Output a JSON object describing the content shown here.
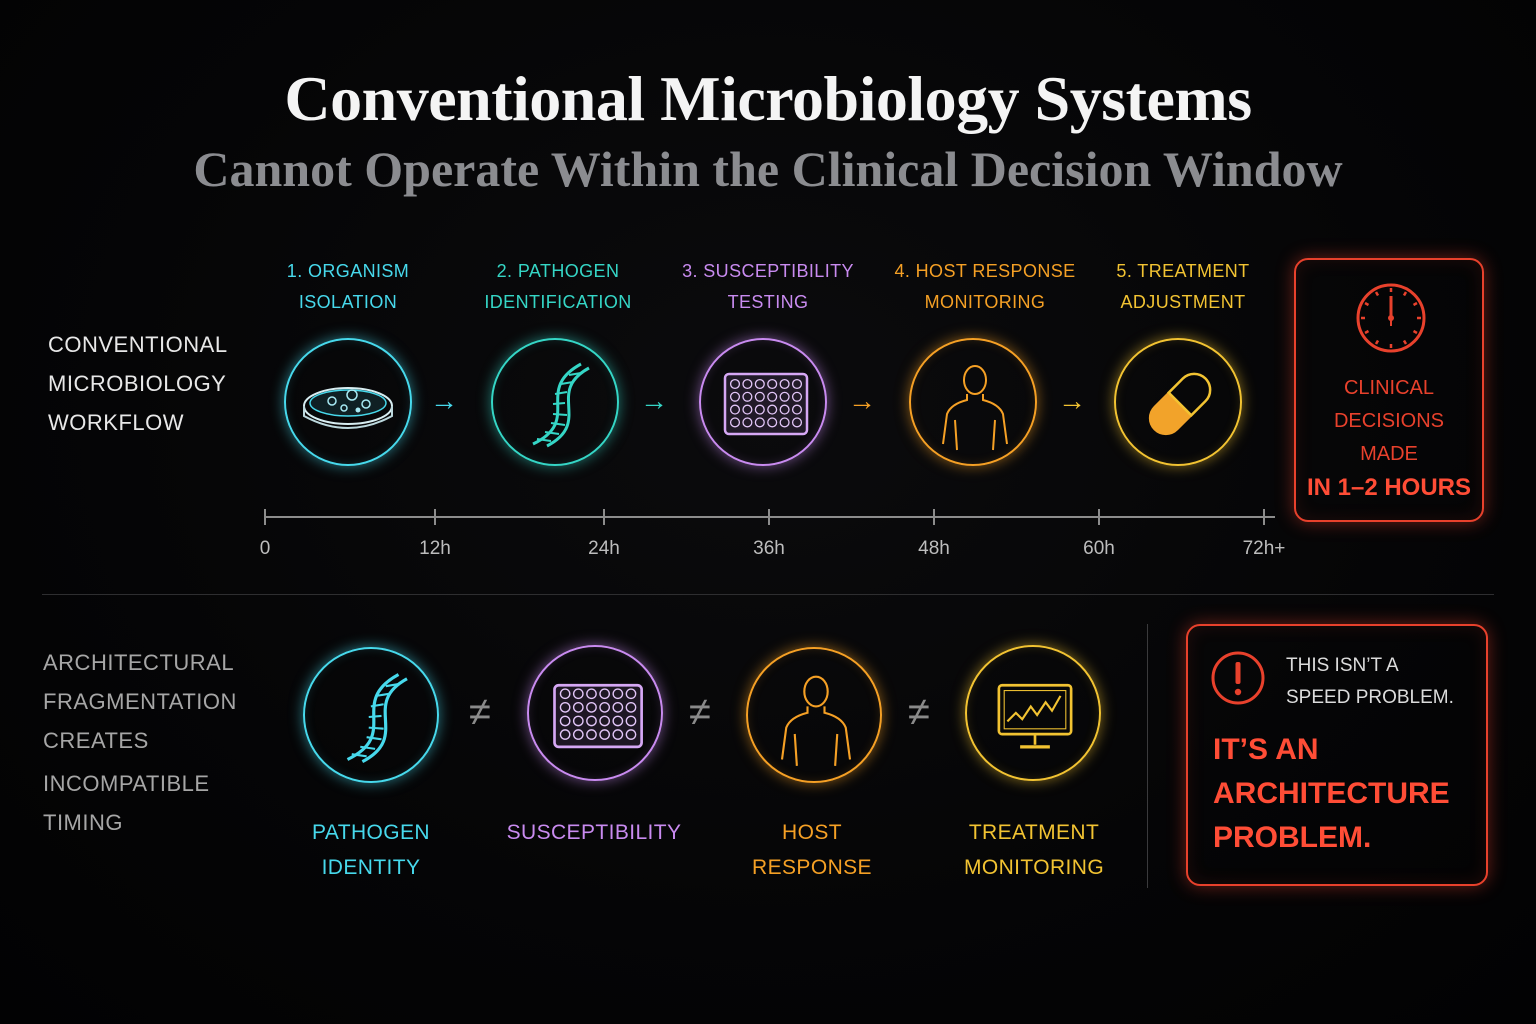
{
  "title": "Conventional Microbiology Systems",
  "subtitle": "Cannot Operate Within the Clinical Decision Window",
  "workflow": {
    "side_label": [
      "CONVENTIONAL",
      "MICROBIOLOGY",
      "WORKFLOW"
    ],
    "steps": [
      {
        "line1": "1. ORGANISM",
        "line2": "ISOLATION",
        "icon": "petri-dish-icon",
        "color": "#47d9ec"
      },
      {
        "line1": "2. PATHOGEN",
        "line2": "IDENTIFICATION",
        "icon": "dna-icon",
        "color": "#35d6c6"
      },
      {
        "line1": "3. SUSCEPTIBILITY",
        "line2": "TESTING",
        "icon": "well-plate-icon",
        "color": "#c98bf0"
      },
      {
        "line1": "4. HOST RESPONSE",
        "line2": "MONITORING",
        "icon": "human-torso-icon",
        "color": "#f5a025"
      },
      {
        "line1": "5. TREATMENT",
        "line2": "ADJUSTMENT",
        "icon": "capsule-icon",
        "color": "#f2c332"
      }
    ],
    "arrow": "→",
    "timeline_ticks": [
      "0",
      "12h",
      "24h",
      "36h",
      "48h",
      "60h",
      "72h+"
    ]
  },
  "clinical_box": {
    "icon": "clock-icon",
    "lines": [
      "CLINICAL",
      "DECISIONS",
      "MADE"
    ],
    "emphasis": "IN 1–2 HOURS",
    "color": "#e8412c"
  },
  "fragmentation": {
    "side_label": [
      "ARCHITECTURAL",
      "FRAGMENTATION",
      "CREATES",
      "INCOMPATIBLE",
      "TIMING"
    ],
    "items": [
      {
        "line1": "PATHOGEN",
        "line2": "IDENTITY",
        "icon": "dna-icon",
        "color": "#47d9ec"
      },
      {
        "line1": "SUSCEPTIBILITY",
        "line2": "",
        "icon": "well-plate-icon",
        "color": "#c98bf0"
      },
      {
        "line1": "HOST",
        "line2": "RESPONSE",
        "icon": "human-torso-icon",
        "color": "#f5a025"
      },
      {
        "line1": "TREATMENT",
        "line2": "MONITORING",
        "icon": "monitor-chart-icon",
        "color": "#f2c332"
      }
    ],
    "neq": "≠"
  },
  "problem_box": {
    "icon": "alert-icon",
    "small_lines": [
      "THIS ISN’T A",
      "SPEED PROBLEM."
    ],
    "big_lines": [
      "IT’S AN",
      "ARCHITECTURE",
      "PROBLEM."
    ],
    "color": "#e8412c"
  }
}
